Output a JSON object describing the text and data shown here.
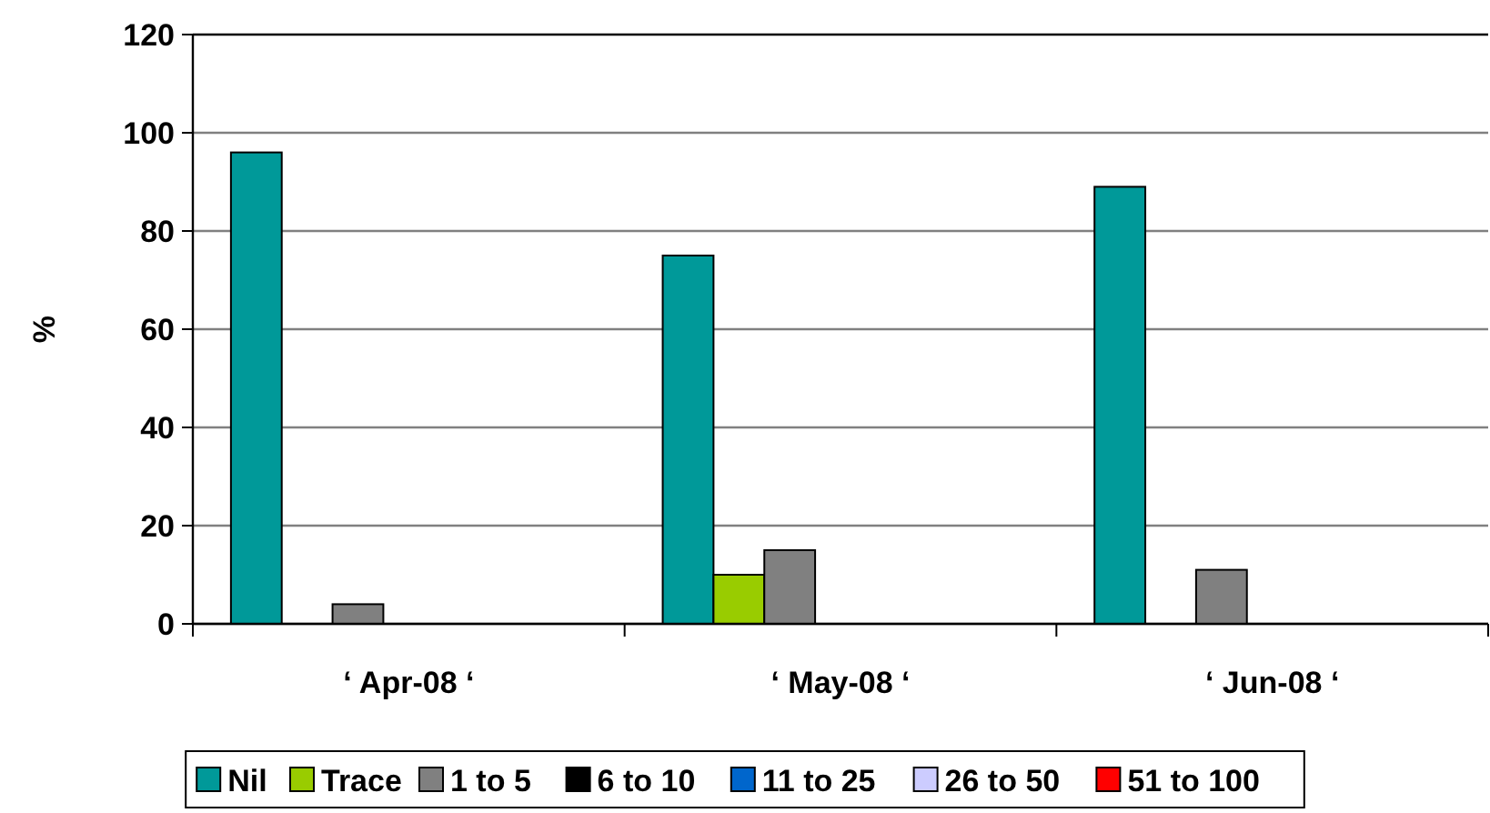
{
  "chart_data": {
    "type": "bar",
    "ylabel": "%",
    "categories": [
      "‘ Apr-08 ‘",
      "‘ May-08 ‘",
      "‘ Jun-08 ‘"
    ],
    "series": [
      {
        "name": "Nil",
        "color": "#009999",
        "values": [
          96,
          75,
          89
        ]
      },
      {
        "name": "Trace",
        "color": "#99cc00",
        "values": [
          0,
          10,
          0
        ]
      },
      {
        "name": "1 to 5",
        "color": "#808080",
        "values": [
          4,
          15,
          11
        ]
      },
      {
        "name": "6 to 10",
        "color": "#000000",
        "values": [
          0,
          0,
          0
        ]
      },
      {
        "name": "11 to 25",
        "color": "#0066cc",
        "values": [
          0,
          0,
          0
        ]
      },
      {
        "name": "26 to 50",
        "color": "#ccccff",
        "values": [
          0,
          0,
          0
        ]
      },
      {
        "name": "51 to 100",
        "color": "#ff0000",
        "values": [
          0,
          0,
          0
        ]
      }
    ],
    "ylim": [
      0,
      120
    ],
    "yticks": [
      0,
      20,
      40,
      60,
      80,
      100,
      120
    ],
    "grid": "y",
    "legend": "bottom"
  }
}
